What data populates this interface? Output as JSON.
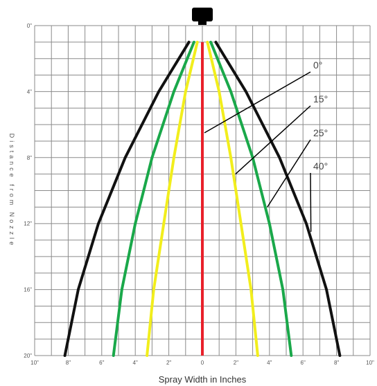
{
  "chart_data": {
    "type": "line",
    "title": "",
    "xlabel": "Spray Width in Inches",
    "ylabel": "Distance from Nozzle",
    "xlim": [
      -10,
      10
    ],
    "ylim": [
      0,
      20
    ],
    "y_inverted": true,
    "grid": true,
    "x_tick_labels": [
      "10\"",
      "8\"",
      "6\"",
      "4\"",
      "2\"",
      "0",
      "2\"",
      "4\"",
      "6\"",
      "8\"",
      "10\""
    ],
    "y_tick_labels": [
      "0\"",
      "4\"",
      "8\"",
      "12\"",
      "16\"",
      "20\""
    ],
    "series": [
      {
        "name": "0°",
        "color": "#e8202a",
        "distance": [
          1,
          20
        ],
        "half_width": [
          0,
          0
        ]
      },
      {
        "name": "15°",
        "color": "#f2ee1c",
        "distance": [
          1,
          4,
          8,
          12,
          16,
          20
        ],
        "half_width": [
          0.3,
          1.0,
          1.7,
          2.3,
          2.9,
          3.3
        ]
      },
      {
        "name": "25°",
        "color": "#1aa84a",
        "distance": [
          1,
          4,
          8,
          12,
          16,
          20
        ],
        "half_width": [
          0.5,
          1.7,
          3.0,
          4.0,
          4.8,
          5.3
        ]
      },
      {
        "name": "40°",
        "color": "#111111",
        "distance": [
          1,
          4,
          8,
          12,
          16,
          20
        ],
        "half_width": [
          0.8,
          2.6,
          4.6,
          6.2,
          7.4,
          8.2
        ]
      }
    ]
  },
  "nozzle": {
    "color": "#000000"
  }
}
